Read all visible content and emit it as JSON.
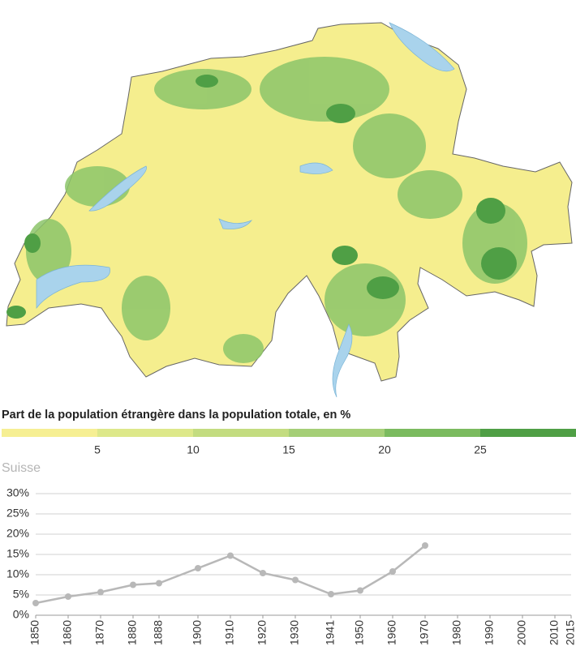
{
  "map_legend": {
    "title": "Part de la population étrangère dans la population totale, en %",
    "bins": [
      0,
      5,
      10,
      15,
      20,
      25,
      30
    ],
    "colors": [
      "#f6ef93",
      "#dde88a",
      "#c3dc80",
      "#a5cf77",
      "#7bbb5f",
      "#4f9f45"
    ],
    "ticks": [
      5,
      10,
      15,
      20,
      25
    ]
  },
  "chart_data": {
    "type": "line",
    "title": "Suisse",
    "x": [
      1850,
      1860,
      1870,
      1880,
      1888,
      1900,
      1910,
      1920,
      1930,
      1941,
      1950,
      1960,
      1970
    ],
    "series": [
      {
        "name": "Suisse",
        "color": "#b8b8b8",
        "values": [
          3.0,
          4.6,
          5.7,
          7.5,
          7.9,
          11.6,
          14.7,
          10.4,
          8.7,
          5.2,
          6.1,
          10.8,
          17.2
        ]
      }
    ],
    "xlim": [
      1850,
      2015
    ],
    "xticks": [
      1850,
      1860,
      1870,
      1880,
      1888,
      1900,
      1910,
      1920,
      1930,
      1941,
      1950,
      1960,
      1970,
      1980,
      1990,
      2000,
      2010,
      2015
    ],
    "ylim": [
      0,
      30
    ],
    "yticks": [
      {
        "value": 0,
        "label": "0%"
      },
      {
        "value": 5,
        "label": "5%"
      },
      {
        "value": 10,
        "label": "10%"
      },
      {
        "value": 15,
        "label": "15%"
      },
      {
        "value": 20,
        "label": "20%"
      },
      {
        "value": 25,
        "label": "25%"
      },
      {
        "value": 30,
        "label": "30%"
      }
    ],
    "grid": true
  }
}
